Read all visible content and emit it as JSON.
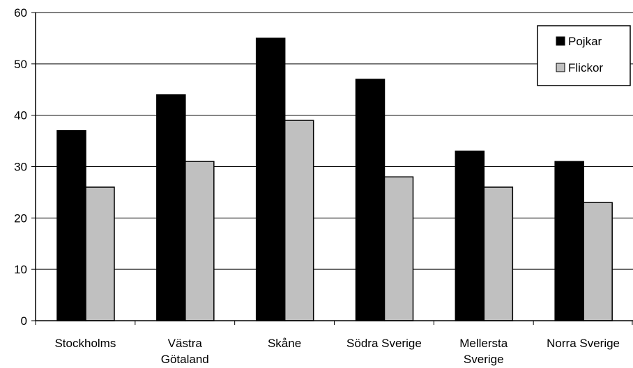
{
  "chart_data": {
    "type": "bar",
    "title": "",
    "xlabel": "",
    "ylabel": "",
    "categories": [
      "Stockholms",
      "Västra Götaland",
      "Skåne",
      "Södra Sverige",
      "Mellersta Sverige",
      "Norra Sverige"
    ],
    "category_lines": [
      [
        "Stockholms"
      ],
      [
        "Västra",
        "Götaland"
      ],
      [
        "Skåne"
      ],
      [
        "Södra Sverige"
      ],
      [
        "Mellersta",
        "Sverige"
      ],
      [
        "Norra Sverige"
      ]
    ],
    "series": [
      {
        "name": "Pojkar",
        "color": "#000000",
        "values": [
          37,
          44,
          55,
          47,
          33,
          31
        ]
      },
      {
        "name": "Flickor",
        "color": "#c0c0c0",
        "values": [
          26,
          31,
          39,
          28,
          26,
          23
        ]
      }
    ],
    "ylim": [
      0,
      60
    ],
    "yticks": [
      0,
      10,
      20,
      30,
      40,
      50,
      60
    ],
    "grid": true,
    "legend_position": "top-right"
  }
}
